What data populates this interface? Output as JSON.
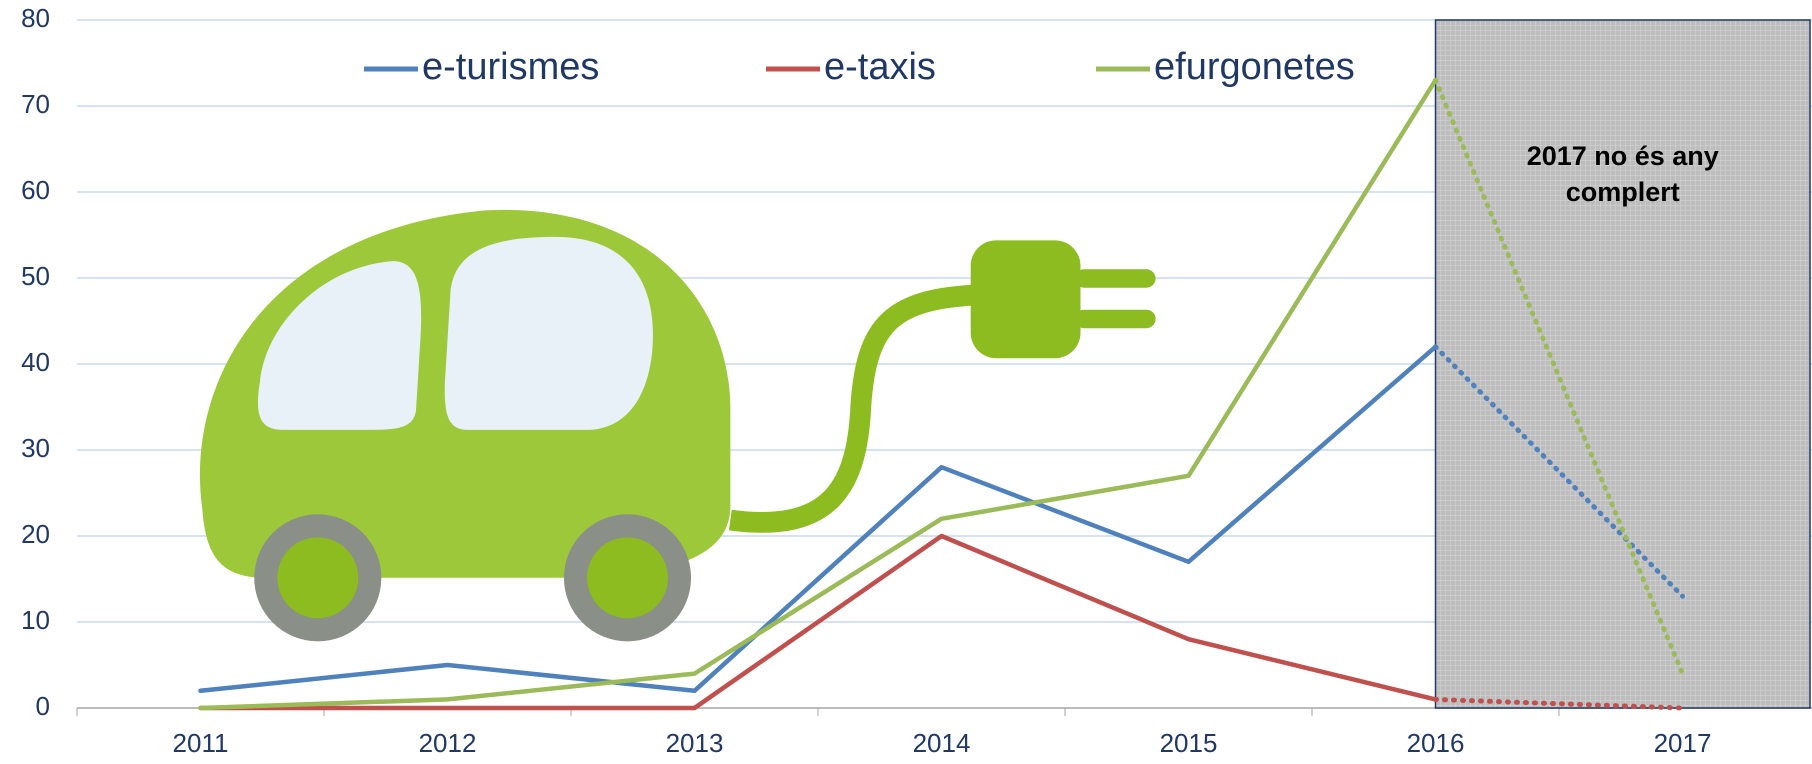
{
  "chart_data": {
    "type": "line",
    "categories": [
      "2011",
      "2012",
      "2013",
      "2014",
      "2015",
      "2016",
      "2017"
    ],
    "series": [
      {
        "name": "e-turismes",
        "color": "#4f81bd",
        "values": [
          2,
          5,
          2,
          28,
          17,
          42,
          13
        ]
      },
      {
        "name": "e-taxis",
        "color": "#c0504d",
        "values": [
          0,
          0,
          0,
          20,
          8,
          1,
          0
        ]
      },
      {
        "name": "efurgonetes",
        "color": "#9bbb59",
        "values": [
          0,
          1,
          4,
          22,
          27,
          73,
          4
        ]
      }
    ],
    "ylim": [
      0,
      80
    ],
    "yticks": [
      0,
      10,
      20,
      30,
      40,
      50,
      60,
      70,
      80
    ],
    "grid": true,
    "highlight": {
      "from": "2016",
      "label": "2017 no és any complert"
    }
  }
}
